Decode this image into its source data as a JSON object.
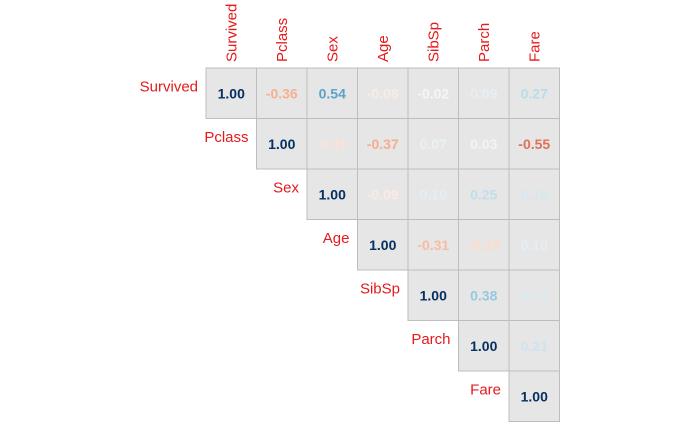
{
  "chart_data": {
    "type": "heatmap",
    "variables": [
      "Survived",
      "Pclass",
      "Sex",
      "Age",
      "SibSp",
      "Parch",
      "Fare"
    ],
    "matrix": [
      [
        1.0,
        -0.36,
        0.54,
        -0.08,
        -0.02,
        0.09,
        0.27
      ],
      [
        null,
        1.0,
        -0.15,
        -0.37,
        0.07,
        0.03,
        -0.55
      ],
      [
        null,
        null,
        1.0,
        -0.09,
        0.1,
        0.25,
        0.18
      ],
      [
        null,
        null,
        null,
        1.0,
        -0.31,
        -0.19,
        0.1
      ],
      [
        null,
        null,
        null,
        null,
        1.0,
        0.38,
        0.14
      ],
      [
        null,
        null,
        null,
        null,
        null,
        1.0,
        0.21
      ],
      [
        null,
        null,
        null,
        null,
        null,
        null,
        1.0
      ]
    ],
    "colors": {
      "positive": "#053061",
      "negative": "#B2182B",
      "neutral": "#F7F7F7",
      "cell_background": "#E6E6E6",
      "cell_border": "#BDBDBD",
      "label": "#E41A1C"
    },
    "diagonal_shown": true,
    "triangle": "upper"
  }
}
